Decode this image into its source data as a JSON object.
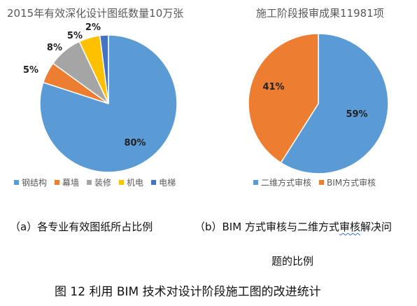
{
  "chart_data": [
    {
      "type": "pie",
      "title": "2015年有效深化设计图纸数量10万张",
      "categories": [
        "钢结构",
        "幕墙",
        "装修",
        "机电",
        "电梯"
      ],
      "values": [
        80,
        5,
        8,
        5,
        2
      ],
      "labels": [
        "80%",
        "5%",
        "8%",
        "5%",
        "2%"
      ],
      "colors": [
        "#5B9BD5",
        "#ED7D31",
        "#A5A5A5",
        "#FFC000",
        "#4472C4"
      ],
      "legend": "bottom"
    },
    {
      "type": "pie",
      "title": "施工阶段报审成果11981项",
      "categories": [
        "二维方式审核",
        "BIM方式审核"
      ],
      "values": [
        59,
        41
      ],
      "labels": [
        "59%",
        "41%"
      ],
      "colors": [
        "#5B9BD5",
        "#ED7D31"
      ],
      "legend": "bottom"
    }
  ],
  "captions": {
    "a": "（a）各专业有效图纸所占比例",
    "b_line1_pre": "（b）BIM 方式审核与二维方式",
    "b_line1_mark": "审核",
    "b_line1_post": "解决问",
    "b_line2": "题的比例",
    "figure": "图 12 利用 BIM 技术对设计阶段施工图的改进统计"
  }
}
